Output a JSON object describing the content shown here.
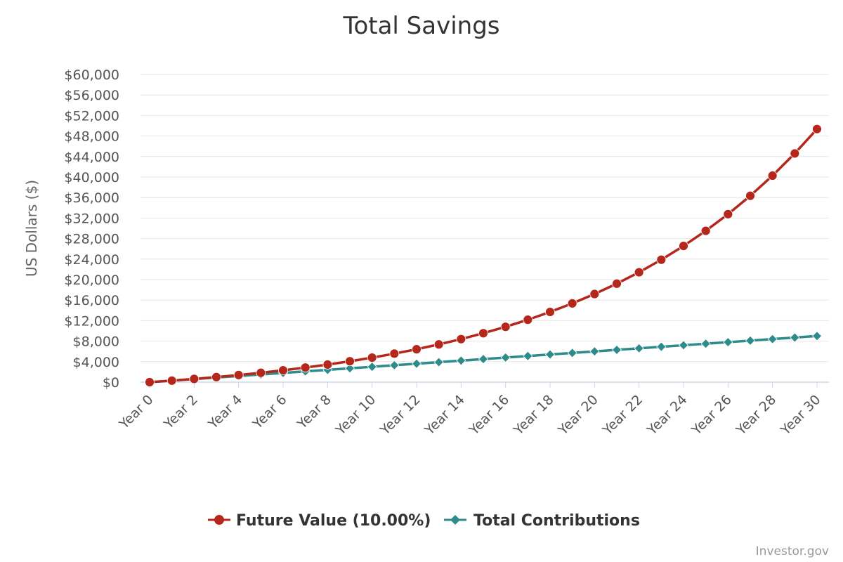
{
  "chart_data": {
    "type": "line",
    "title": "Total Savings",
    "xlabel": "",
    "ylabel": "US Dollars ($)",
    "ylim": [
      0,
      60000
    ],
    "y_ticks": [
      0,
      4000,
      8000,
      12000,
      16000,
      20000,
      24000,
      28000,
      32000,
      36000,
      40000,
      44000,
      48000,
      52000,
      56000,
      60000
    ],
    "y_tick_labels": [
      "$0",
      "$4,000",
      "$8,000",
      "$12,000",
      "$16,000",
      "$20,000",
      "$24,000",
      "$28,000",
      "$32,000",
      "$36,000",
      "$40,000",
      "$44,000",
      "$48,000",
      "$52,000",
      "$56,000",
      "$60,000"
    ],
    "categories": [
      "Year 0",
      "Year 1",
      "Year 2",
      "Year 3",
      "Year 4",
      "Year 5",
      "Year 6",
      "Year 7",
      "Year 8",
      "Year 9",
      "Year 10",
      "Year 11",
      "Year 12",
      "Year 13",
      "Year 14",
      "Year 15",
      "Year 16",
      "Year 17",
      "Year 18",
      "Year 19",
      "Year 20",
      "Year 21",
      "Year 22",
      "Year 23",
      "Year 24",
      "Year 25",
      "Year 26",
      "Year 27",
      "Year 28",
      "Year 29",
      "Year 30"
    ],
    "x_tick_labels": [
      "Year 0",
      "Year 2",
      "Year 4",
      "Year 6",
      "Year 8",
      "Year 10",
      "Year 12",
      "Year 14",
      "Year 16",
      "Year 18",
      "Year 20",
      "Year 22",
      "Year 24",
      "Year 26",
      "Year 28",
      "Year 30"
    ],
    "series": [
      {
        "name": "Future Value (10.00%)",
        "color": "#b5261b",
        "marker": "circle",
        "values": [
          0,
          300,
          630,
          990,
          1390,
          1830,
          2310,
          2850,
          3430,
          4080,
          4780,
          5560,
          6420,
          7360,
          8400,
          9540,
          10790,
          12170,
          13690,
          15360,
          17190,
          19210,
          21430,
          23870,
          26560,
          29510,
          32760,
          36340,
          40270,
          44600,
          49360
        ]
      },
      {
        "name": "Total Contributions",
        "color": "#2e8b8b",
        "marker": "diamond",
        "values": [
          0,
          300,
          600,
          900,
          1200,
          1500,
          1800,
          2100,
          2400,
          2700,
          3000,
          3300,
          3600,
          3900,
          4200,
          4500,
          4800,
          5100,
          5400,
          5700,
          6000,
          6300,
          6600,
          6900,
          7200,
          7500,
          7800,
          8100,
          8400,
          8700,
          9000
        ]
      }
    ],
    "legend_position": "bottom-center",
    "grid": true
  },
  "credit": "Investor.gov"
}
